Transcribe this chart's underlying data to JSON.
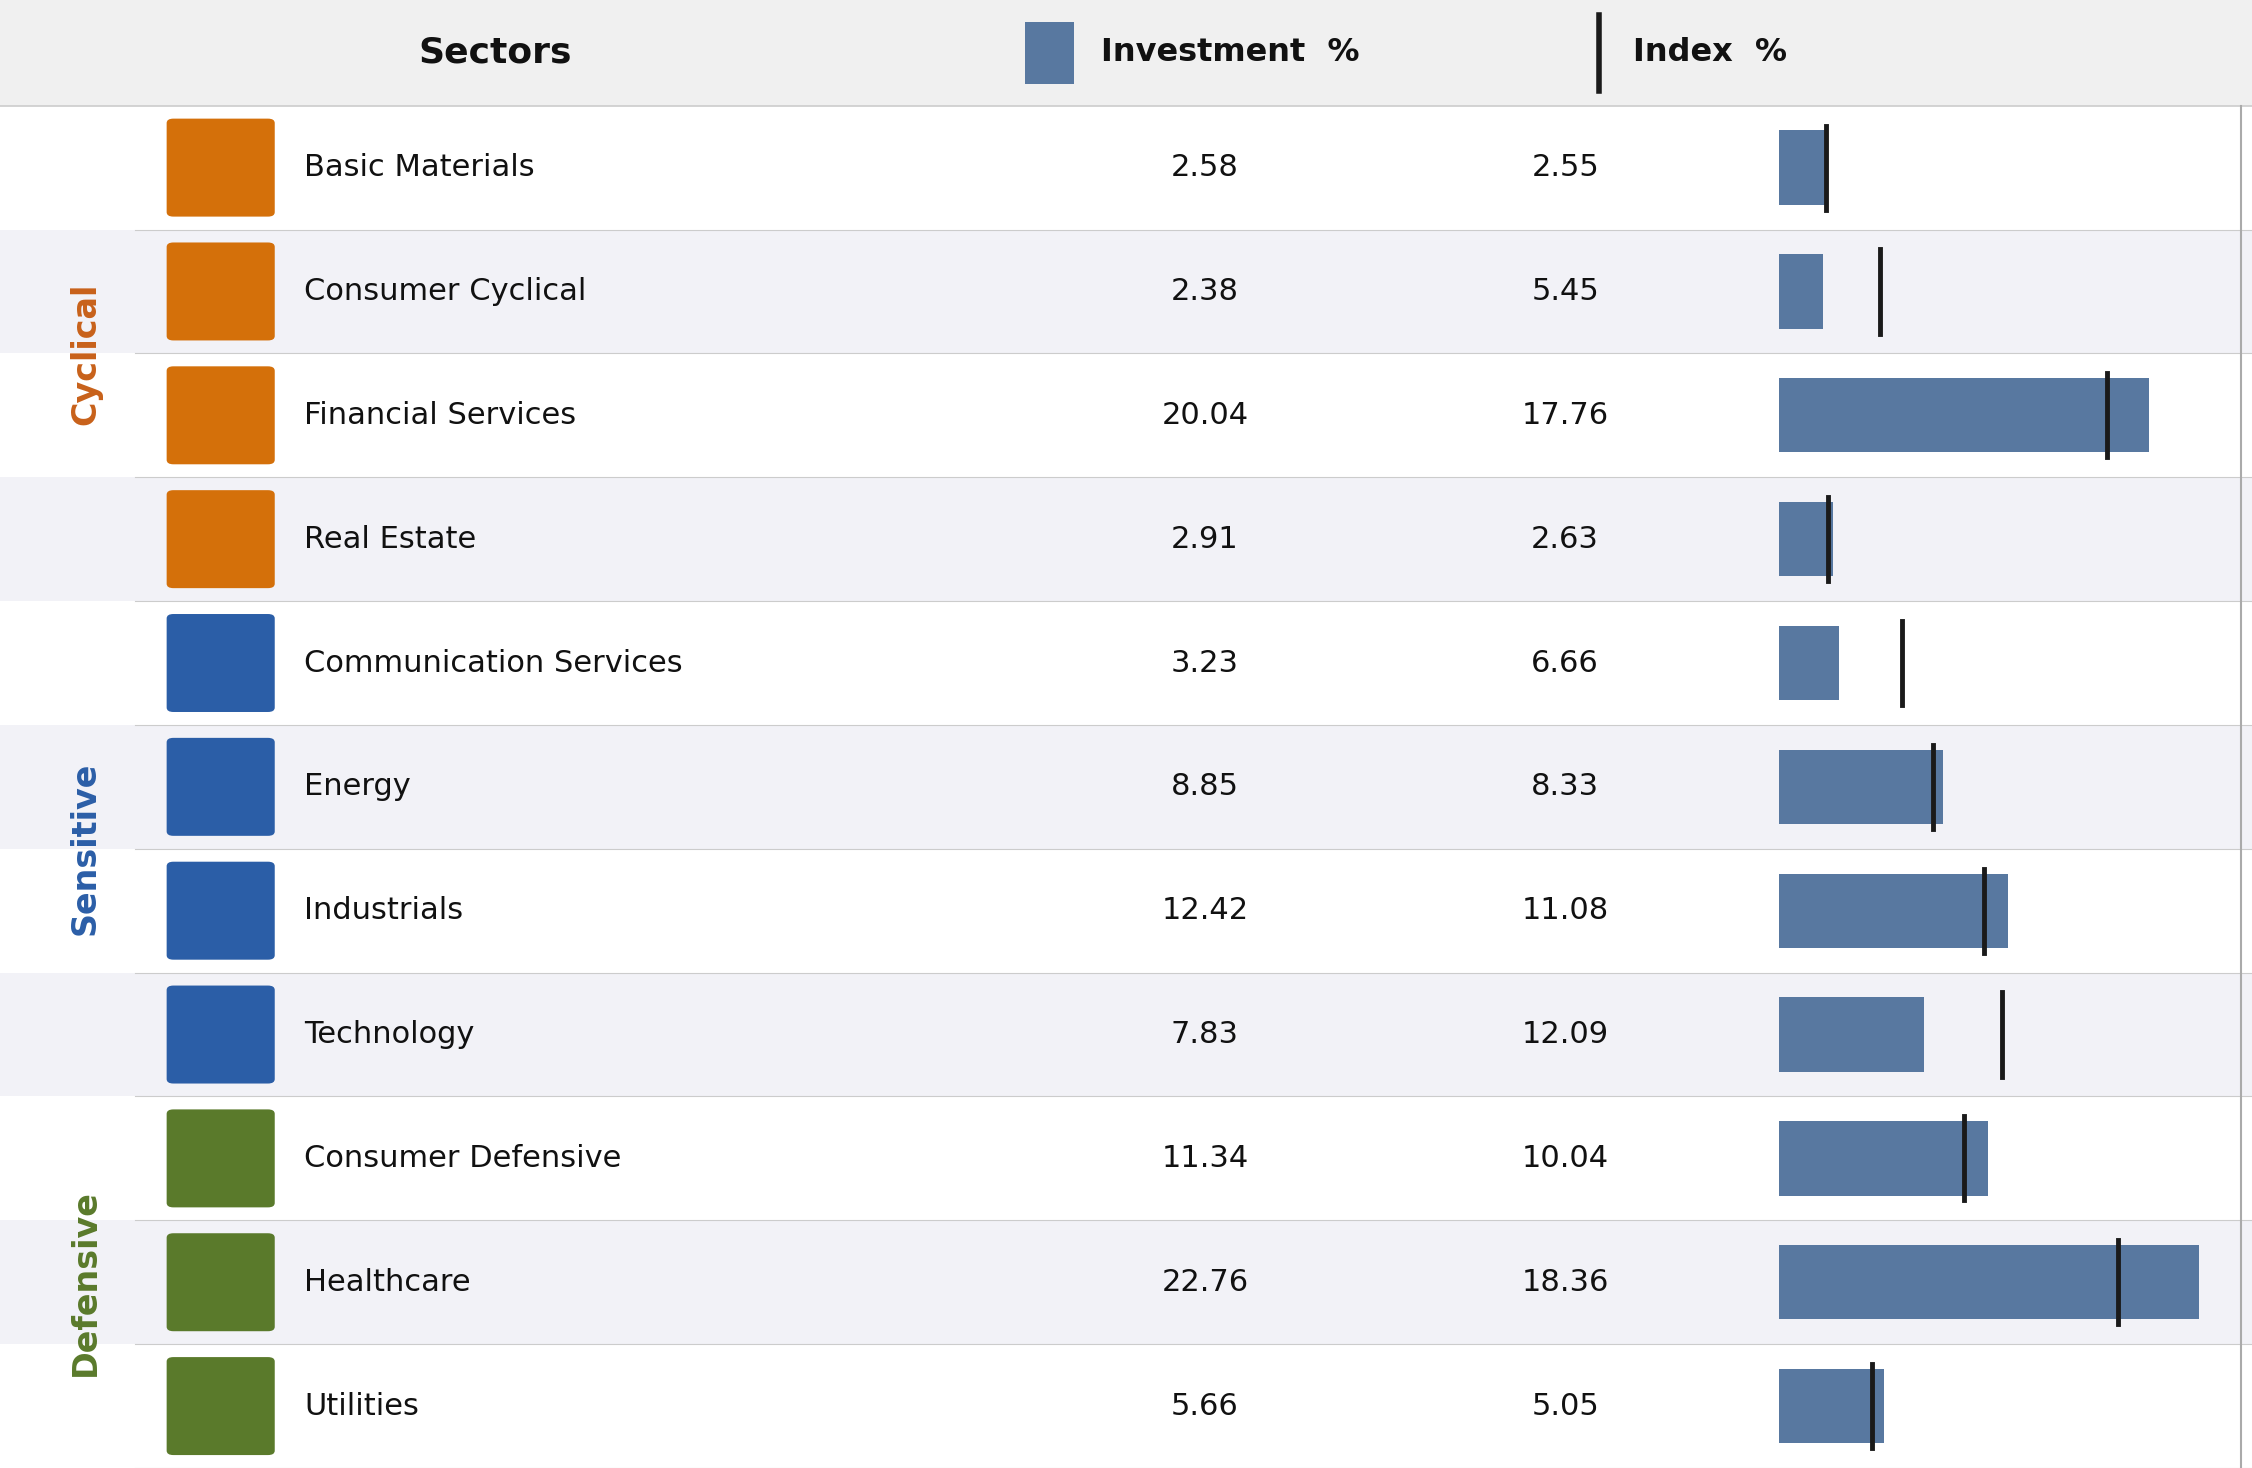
{
  "sectors": [
    "Basic Materials",
    "Consumer Cyclical",
    "Financial Services",
    "Real Estate",
    "Communication Services",
    "Energy",
    "Industrials",
    "Technology",
    "Consumer Defensive",
    "Healthcare",
    "Utilities"
  ],
  "investment_pct": [
    2.58,
    2.38,
    20.04,
    2.91,
    3.23,
    8.85,
    12.42,
    7.83,
    11.34,
    22.76,
    5.66
  ],
  "index_pct": [
    2.55,
    5.45,
    17.76,
    2.63,
    6.66,
    8.33,
    11.08,
    12.09,
    10.04,
    18.36,
    5.05
  ],
  "categories": [
    "Cyclical",
    "Cyclical",
    "Cyclical",
    "Cyclical",
    "Sensitive",
    "Sensitive",
    "Sensitive",
    "Sensitive",
    "Defensive",
    "Defensive",
    "Defensive"
  ],
  "category_colors": {
    "Cyclical": "#C8611A",
    "Sensitive": "#2B5EA7",
    "Defensive": "#5A7A2B"
  },
  "icon_colors": {
    "Cyclical": "#D4700A",
    "Sensitive": "#2B5EA7",
    "Defensive": "#5A7A2B"
  },
  "bar_color": "#5878A0",
  "index_line_color": "#1a1a1a",
  "background_color": "#ffffff",
  "row_bg_even": "#ffffff",
  "row_bg_odd": "#f2f2f7",
  "max_bar_value": 25,
  "bar_area_right_line_color": "#aaaaaa",
  "separator_color": "#cccccc"
}
